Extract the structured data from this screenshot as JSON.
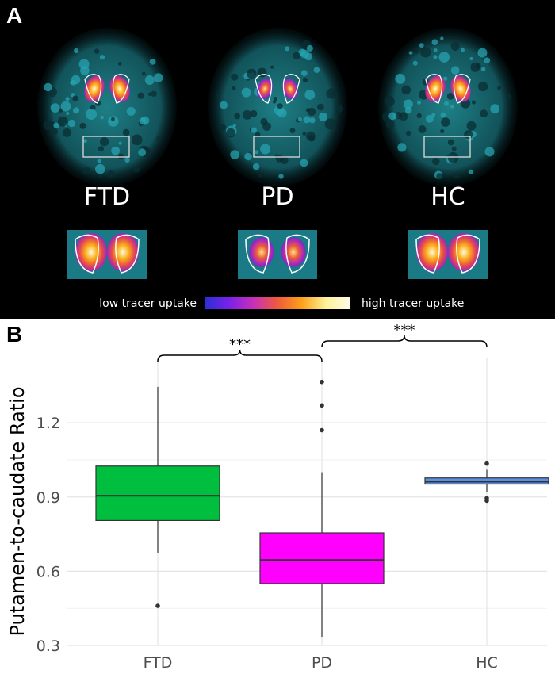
{
  "panel_a": {
    "letter": "A",
    "scans": [
      {
        "label": "FTD",
        "uptake": "high"
      },
      {
        "label": "PD",
        "uptake": "low"
      },
      {
        "label": "HC",
        "uptake": "high"
      }
    ],
    "colorbar": {
      "low_label": "low tracer uptake",
      "high_label": "high tracer uptake",
      "colors": [
        "#2a2fd6",
        "#7a21e8",
        "#c82fb9",
        "#ef5a3c",
        "#fca11a",
        "#fdf29a",
        "#fffbe8"
      ]
    }
  },
  "panel_b": {
    "letter": "B",
    "significance": [
      {
        "from": "FTD",
        "to": "PD",
        "label": "***"
      },
      {
        "from": "PD",
        "to": "HC",
        "label": "***"
      }
    ]
  },
  "chart_data": {
    "type": "box",
    "title": "",
    "xlabel": "",
    "ylabel": "Putamen-to-caudate Ratio",
    "ylim": [
      0.3,
      1.46
    ],
    "yticks": [
      0.3,
      0.6,
      0.9,
      1.2
    ],
    "ytick_labels": [
      "0.3",
      "0.6",
      "0.9",
      "1.2"
    ],
    "categories": [
      "FTD",
      "PD",
      "HC"
    ],
    "boxes": [
      {
        "name": "FTD",
        "color": "#00bf3f",
        "q1": 0.805,
        "median": 0.905,
        "q3": 1.025,
        "whisker_low": 0.675,
        "whisker_high": 1.345,
        "outliers": [
          0.46
        ]
      },
      {
        "name": "PD",
        "color": "#ff00ff",
        "q1": 0.55,
        "median": 0.645,
        "q3": 0.755,
        "whisker_low": 0.335,
        "whisker_high": 1.0,
        "outliers": [
          1.17,
          1.27,
          1.365
        ]
      },
      {
        "name": "HC",
        "color": "#5b8fe0",
        "q1": 0.952,
        "median": 0.962,
        "q3": 0.977,
        "whisker_low": 0.92,
        "whisker_high": 1.01,
        "outliers": [
          0.885,
          0.895,
          1.035
        ]
      }
    ]
  }
}
